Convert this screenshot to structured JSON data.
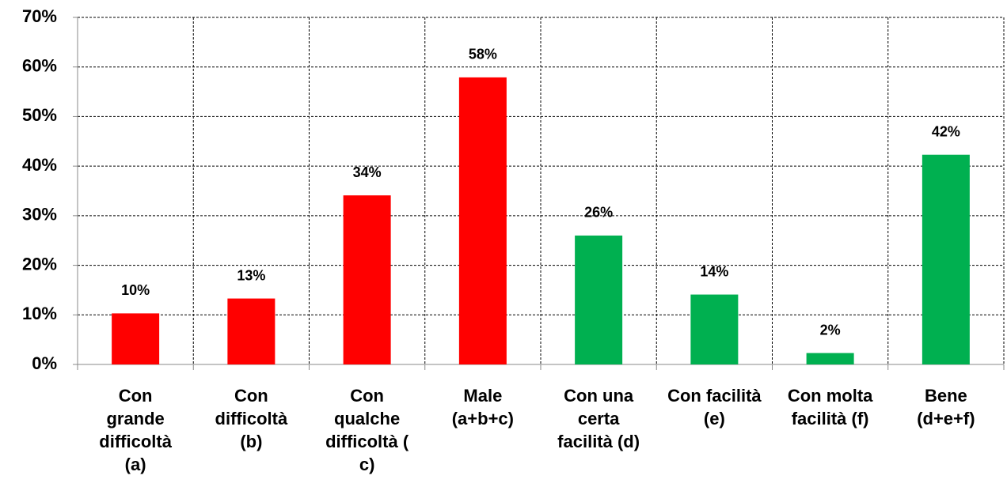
{
  "chart_data": {
    "type": "bar",
    "categories": [
      "Con\ngrande\ndifficoltà\n(a)",
      "Con\ndifficoltà\n(b)",
      "Con\nqualche\ndifficoltà (\nc)",
      "Male\n(a+b+c)",
      "Con una\ncerta\nfacilità (d)",
      "Con facilità\n(e)",
      "Con molta\nfacilità (f)",
      "Bene\n(d+e+f)"
    ],
    "values": [
      10.3,
      13.3,
      34.1,
      57.9,
      26,
      14.1,
      2.3,
      42.3
    ],
    "value_labels": [
      "10%",
      "13%",
      "34%",
      "58%",
      "26%",
      "14%",
      "2%",
      "42%"
    ],
    "colors": [
      "#ff0000",
      "#ff0000",
      "#ff0000",
      "#ff0000",
      "#00b050",
      "#00b050",
      "#00b050",
      "#00b050"
    ],
    "ylim": [
      0,
      70
    ],
    "yticks": [
      {
        "value": 0,
        "label": "0%"
      },
      {
        "value": 10,
        "label": "10%"
      },
      {
        "value": 20,
        "label": "20%"
      },
      {
        "value": 30,
        "label": "30%"
      },
      {
        "value": 40,
        "label": "40%"
      },
      {
        "value": 50,
        "label": "50%"
      },
      {
        "value": 60,
        "label": "60%"
      },
      {
        "value": 70,
        "label": "70%"
      }
    ],
    "grid": true
  }
}
